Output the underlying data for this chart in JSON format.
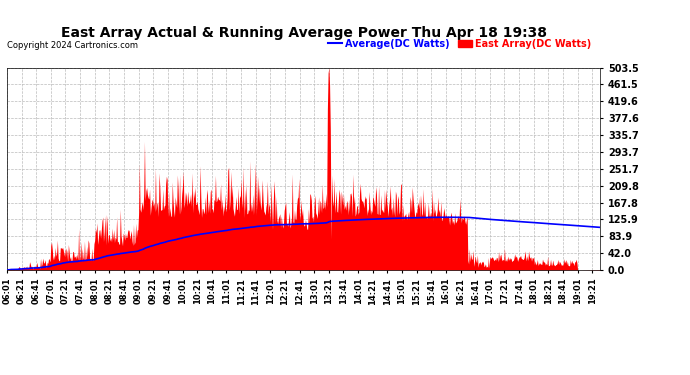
{
  "title": "East Array Actual & Running Average Power Thu Apr 18 19:38",
  "copyright": "Copyright 2024 Cartronics.com",
  "legend_avg": "Average(DC Watts)",
  "legend_east": "East Array(DC Watts)",
  "yticks": [
    0.0,
    42.0,
    83.9,
    125.9,
    167.8,
    209.8,
    251.7,
    293.7,
    335.7,
    377.6,
    419.6,
    461.5,
    503.5
  ],
  "ymax": 503.5,
  "ymin": 0.0,
  "bg_color": "#ffffff",
  "plot_bg_color": "#ffffff",
  "grid_color": "#bbbbbb",
  "fill_color": "#ff0000",
  "line_color": "#0000ff",
  "title_color": "#000000",
  "copyright_color": "#000000",
  "legend_avg_color": "#0000ff",
  "legend_east_color": "#ff0000",
  "title_fontsize": 10,
  "tick_fontsize": 7,
  "copyright_fontsize": 6
}
